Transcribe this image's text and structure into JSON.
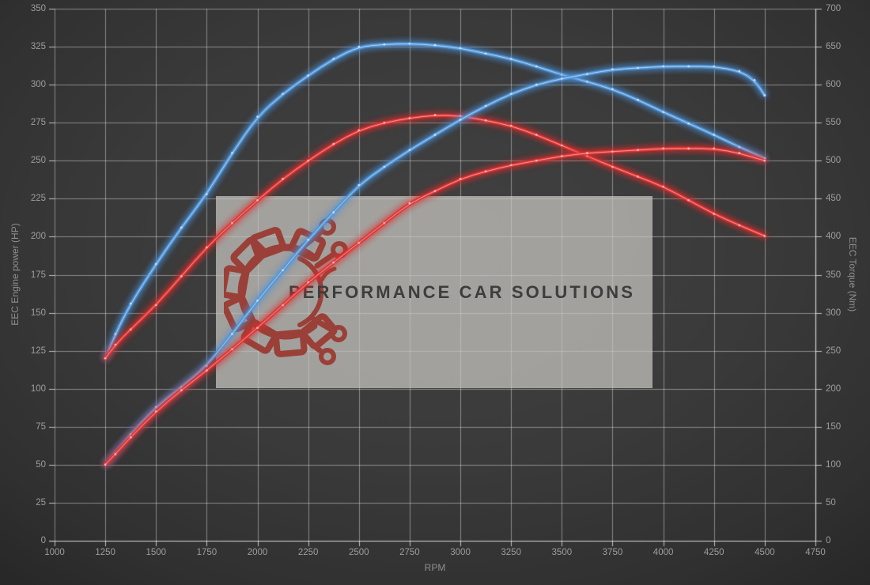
{
  "colors": {
    "background": "#3a3a3a",
    "grid": "rgba(228,228,228,0.48)",
    "axis_line": "rgba(240,240,240,0.75)",
    "tick_text": "#9d9d9d",
    "watermark_box": "rgba(202,199,194,0.72)",
    "watermark_logo": "#9a4038",
    "watermark_text_color": "#3d3d3d",
    "blue_series": "#4d93d8",
    "red_series": "#dd2f2f"
  },
  "watermark": {
    "text": "PERFORMANCE CAR SOLUTIONS",
    "logo": "gear-circuit-logo"
  },
  "axes": {
    "x": {
      "title": "RPM",
      "min": 1000,
      "max": 4750,
      "step": 250
    },
    "y_left": {
      "title": "EEC Engine power (HP)",
      "min": 0,
      "max": 350,
      "step": 25
    },
    "y_right": {
      "title": "EEC Torque (Nm)",
      "min": 0,
      "max": 700,
      "step": 50
    }
  },
  "chart_data": {
    "type": "line",
    "title": "",
    "xlabel": "RPM",
    "ylabel_left": "EEC Engine power (HP)",
    "ylabel_right": "EEC Torque (Nm)",
    "x_range": [
      1000,
      4750
    ],
    "y_left_range": [
      0,
      350
    ],
    "y_right_range": [
      0,
      700
    ],
    "grid": true,
    "legend": "none",
    "series": [
      {
        "name": "torque-tuned-blue",
        "axis": "right",
        "unit": "Nm",
        "color": "#4d93d8",
        "core": "#d9ecff",
        "points": [
          [
            1250,
            240
          ],
          [
            1300,
            272
          ],
          [
            1375,
            312
          ],
          [
            1500,
            364
          ],
          [
            1625,
            412
          ],
          [
            1750,
            456
          ],
          [
            1875,
            510
          ],
          [
            2000,
            558
          ],
          [
            2125,
            588
          ],
          [
            2250,
            612
          ],
          [
            2375,
            634
          ],
          [
            2500,
            650
          ],
          [
            2625,
            653
          ],
          [
            2750,
            654
          ],
          [
            2875,
            652
          ],
          [
            3000,
            648
          ],
          [
            3125,
            641
          ],
          [
            3250,
            634
          ],
          [
            3375,
            624
          ],
          [
            3500,
            613
          ],
          [
            3625,
            604
          ],
          [
            3750,
            594
          ],
          [
            3875,
            580
          ],
          [
            4000,
            564
          ],
          [
            4125,
            549
          ],
          [
            4250,
            534
          ],
          [
            4375,
            518
          ],
          [
            4500,
            503
          ]
        ]
      },
      {
        "name": "torque-original-red",
        "axis": "right",
        "unit": "Nm",
        "color": "#dd2f2f",
        "core": "#ffc9c9",
        "points": [
          [
            1250,
            240
          ],
          [
            1300,
            258
          ],
          [
            1375,
            278
          ],
          [
            1500,
            310
          ],
          [
            1625,
            348
          ],
          [
            1750,
            386
          ],
          [
            1875,
            418
          ],
          [
            2000,
            448
          ],
          [
            2125,
            476
          ],
          [
            2250,
            500
          ],
          [
            2375,
            522
          ],
          [
            2500,
            540
          ],
          [
            2625,
            550
          ],
          [
            2750,
            556
          ],
          [
            2875,
            560
          ],
          [
            3000,
            559
          ],
          [
            3125,
            553
          ],
          [
            3250,
            546
          ],
          [
            3375,
            534
          ],
          [
            3500,
            520
          ],
          [
            3625,
            506
          ],
          [
            3750,
            492
          ],
          [
            3875,
            479
          ],
          [
            4000,
            466
          ],
          [
            4125,
            448
          ],
          [
            4250,
            430
          ],
          [
            4375,
            415
          ],
          [
            4500,
            401
          ]
        ]
      },
      {
        "name": "power-tuned-blue",
        "axis": "left",
        "unit": "HP",
        "color": "#4d93d8",
        "core": "#d9ecff",
        "points": [
          [
            1250,
            50
          ],
          [
            1300,
            58
          ],
          [
            1375,
            70
          ],
          [
            1500,
            88
          ],
          [
            1625,
            101
          ],
          [
            1750,
            115
          ],
          [
            1875,
            136
          ],
          [
            2000,
            158
          ],
          [
            2125,
            178
          ],
          [
            2250,
            198
          ],
          [
            2375,
            216
          ],
          [
            2500,
            234
          ],
          [
            2625,
            246
          ],
          [
            2750,
            257
          ],
          [
            2875,
            267
          ],
          [
            3000,
            277
          ],
          [
            3125,
            286
          ],
          [
            3250,
            294
          ],
          [
            3375,
            300
          ],
          [
            3500,
            304
          ],
          [
            3625,
            307
          ],
          [
            3750,
            310
          ],
          [
            3875,
            311
          ],
          [
            4000,
            312
          ],
          [
            4125,
            312
          ],
          [
            4250,
            312
          ],
          [
            4375,
            309
          ],
          [
            4450,
            303
          ],
          [
            4500,
            293
          ]
        ]
      },
      {
        "name": "power-original-red",
        "axis": "left",
        "unit": "HP",
        "color": "#dd2f2f",
        "core": "#ffc9c9",
        "points": [
          [
            1250,
            50
          ],
          [
            1300,
            57
          ],
          [
            1375,
            68
          ],
          [
            1500,
            85
          ],
          [
            1625,
            99
          ],
          [
            1750,
            112
          ],
          [
            1875,
            126
          ],
          [
            2000,
            140
          ],
          [
            2125,
            155
          ],
          [
            2250,
            170
          ],
          [
            2375,
            183
          ],
          [
            2500,
            196
          ],
          [
            2625,
            209
          ],
          [
            2750,
            222
          ],
          [
            2875,
            230
          ],
          [
            3000,
            238
          ],
          [
            3125,
            243
          ],
          [
            3250,
            247
          ],
          [
            3375,
            250
          ],
          [
            3500,
            253
          ],
          [
            3625,
            255
          ],
          [
            3750,
            256
          ],
          [
            3875,
            257
          ],
          [
            4000,
            258
          ],
          [
            4125,
            258
          ],
          [
            4250,
            258
          ],
          [
            4375,
            255
          ],
          [
            4500,
            250
          ]
        ]
      }
    ]
  }
}
